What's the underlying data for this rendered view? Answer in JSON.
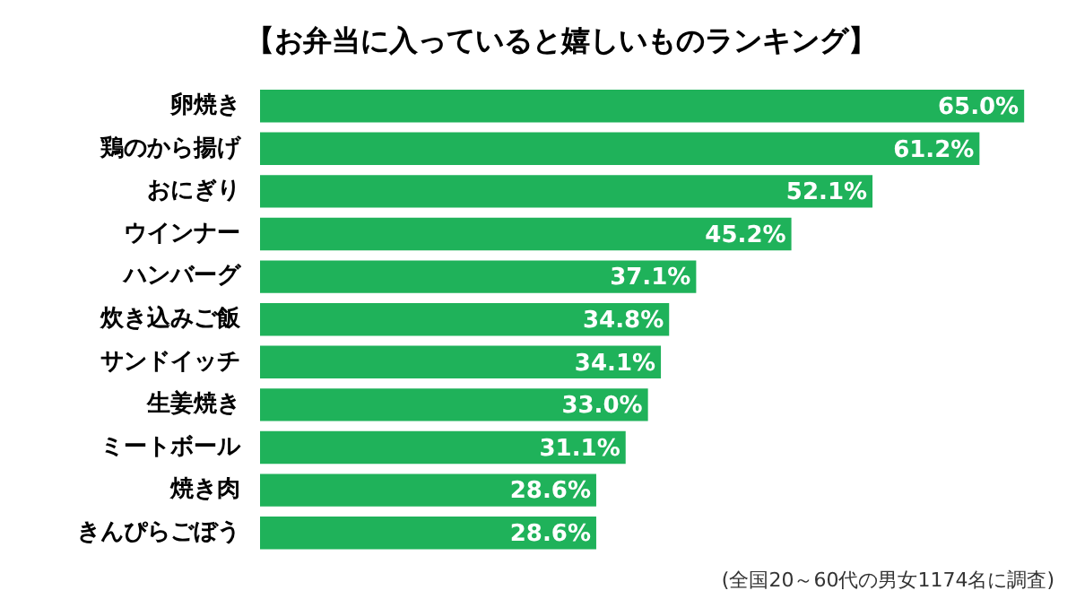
{
  "chart_data": {
    "type": "bar",
    "orientation": "horizontal",
    "title": "【お弁当に入っていると嬉しいものランキング】",
    "categories": [
      "卵焼き",
      "鶏のから揚げ",
      "おにぎり",
      "ウインナー",
      "ハンバーグ",
      "炊き込みご飯",
      "サンドイッチ",
      "生姜焼き",
      "ミートボール",
      "焼き肉",
      "きんぴらごぼう"
    ],
    "values": [
      65.0,
      61.2,
      52.1,
      45.2,
      37.1,
      34.8,
      34.1,
      33.0,
      31.1,
      28.6,
      28.6
    ],
    "value_labels": [
      "65.0%",
      "61.2%",
      "52.1%",
      "45.2%",
      "37.1%",
      "34.8%",
      "34.1%",
      "33.0%",
      "31.1%",
      "28.6%",
      "28.6%"
    ],
    "color": "#1fb25a",
    "legend": false,
    "annotations": [
      "(全国20～60代の男女1174名に調査)"
    ]
  }
}
